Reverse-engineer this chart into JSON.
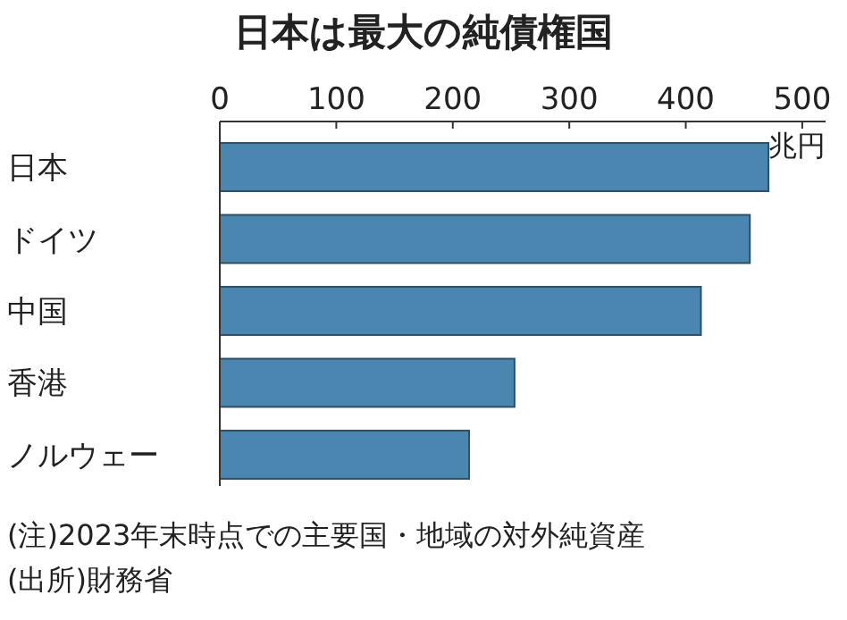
{
  "chart_data": {
    "type": "bar",
    "orientation": "horizontal",
    "title": "日本は最大の純債権国",
    "xlabel": "兆円",
    "categories": [
      "日本",
      "ドイツ",
      "中国",
      "香港",
      "ノルウェー"
    ],
    "values": [
      471,
      455,
      413,
      253,
      214
    ],
    "color": "#4a86b0",
    "xlim": [
      0,
      520
    ],
    "xticks": [
      0,
      100,
      200,
      300,
      400,
      500
    ],
    "grid": false,
    "annotations": [
      "(注)2023年末時点での主要国・地域の対外純資産",
      "(出所)財務省"
    ]
  }
}
